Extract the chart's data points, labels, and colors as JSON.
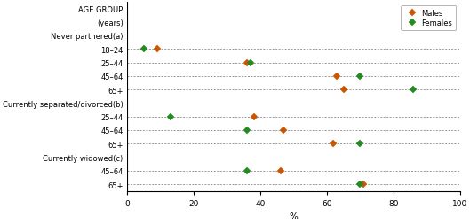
{
  "rows": [
    {
      "label": "AGE GROUP",
      "header": true,
      "males": null,
      "females": null
    },
    {
      "label": "(years)",
      "header": true,
      "males": null,
      "females": null
    },
    {
      "label": "Never partnered(a)",
      "header": true,
      "males": null,
      "females": null
    },
    {
      "label": "18–24",
      "header": false,
      "males": 9,
      "females": 5
    },
    {
      "label": "25–44",
      "header": false,
      "males": 36,
      "females": 37
    },
    {
      "label": "45–64",
      "header": false,
      "males": 63,
      "females": 70
    },
    {
      "label": "65+",
      "header": false,
      "males": 65,
      "females": 86
    },
    {
      "label": "Currently separated/divorced(b)",
      "header": true,
      "males": null,
      "females": null
    },
    {
      "label": "25–44",
      "header": false,
      "males": 38,
      "females": 13
    },
    {
      "label": "45–64",
      "header": false,
      "males": 47,
      "females": 36
    },
    {
      "label": "65+",
      "header": false,
      "males": 62,
      "females": 70
    },
    {
      "label": "Currently widowed(c)",
      "header": true,
      "males": null,
      "females": null
    },
    {
      "label": "45–64",
      "header": false,
      "males": 46,
      "females": 36
    },
    {
      "label": "65+",
      "header": false,
      "males": 71,
      "females": 70
    }
  ],
  "male_color": "#cc5500",
  "female_color": "#228B22",
  "xlabel": "%",
  "xlim": [
    0,
    100
  ],
  "xticks": [
    0,
    20,
    40,
    60,
    80,
    100
  ],
  "legend_male": "Males",
  "legend_female": "Females",
  "marker": "D",
  "marker_size": 4,
  "dashed_color": "#777777",
  "background": "#ffffff",
  "figwidth": 5.29,
  "figheight": 2.53,
  "dpi": 100
}
